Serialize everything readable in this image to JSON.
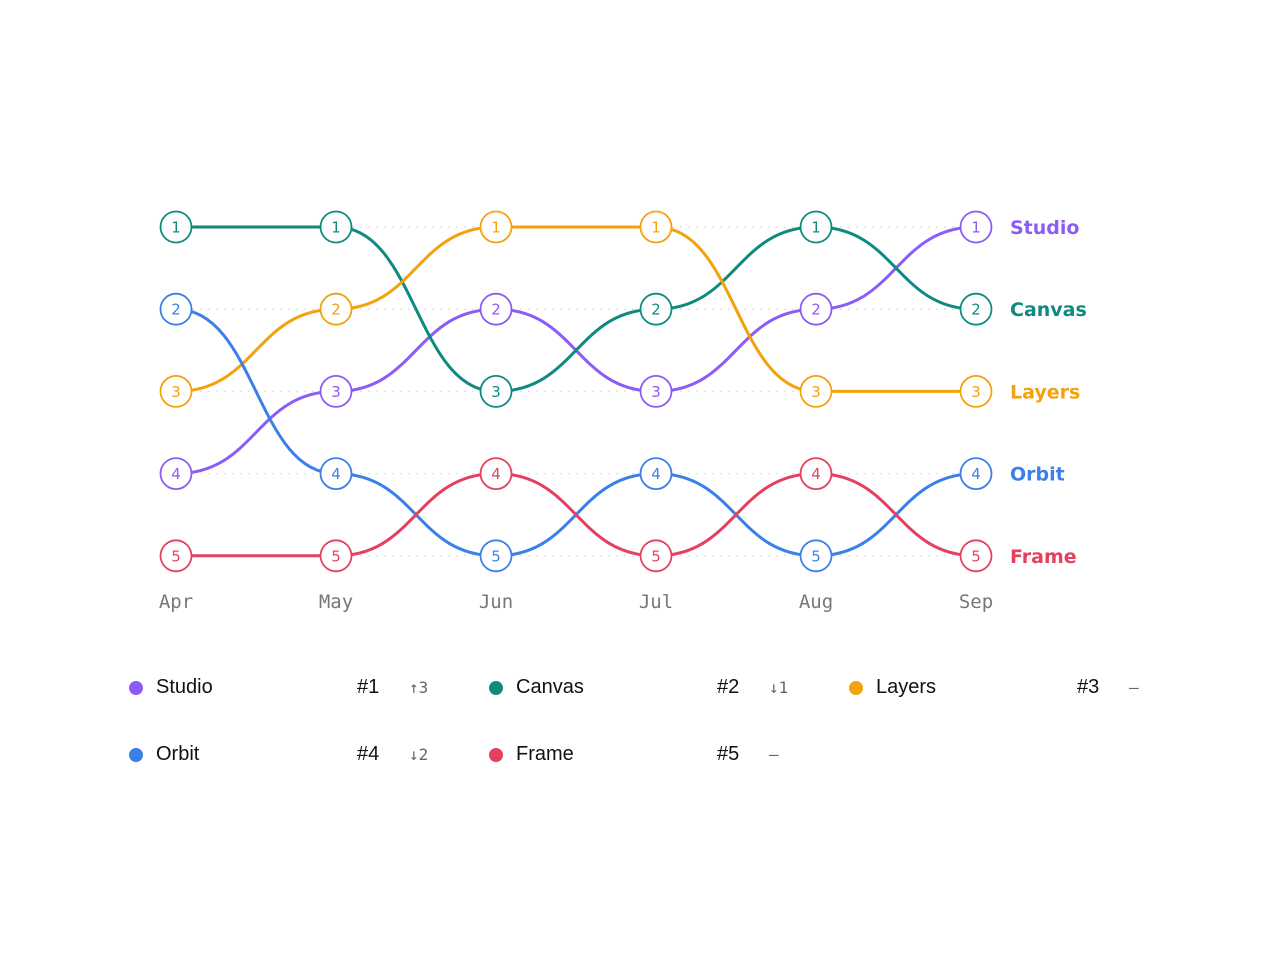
{
  "chart_data": {
    "type": "line",
    "title": "",
    "xlabel": "",
    "ylabel": "",
    "categories": [
      "Apr",
      "May",
      "Jun",
      "Jul",
      "Aug",
      "Sep"
    ],
    "ylim": [
      1,
      5
    ],
    "y_inverted": true,
    "grid": true,
    "legend": "bottom",
    "series": [
      {
        "name": "Studio",
        "color": "#8b5cf6",
        "values": [
          4,
          3,
          2,
          3,
          2,
          1
        ]
      },
      {
        "name": "Canvas",
        "color": "#0f8a80",
        "values": [
          1,
          1,
          3,
          2,
          1,
          2
        ]
      },
      {
        "name": "Layers",
        "color": "#f2a20c",
        "values": [
          3,
          2,
          1,
          1,
          3,
          3
        ]
      },
      {
        "name": "Orbit",
        "color": "#3b7fe8",
        "values": [
          2,
          4,
          5,
          4,
          5,
          4
        ]
      },
      {
        "name": "Frame",
        "color": "#e5405e",
        "values": [
          5,
          5,
          4,
          5,
          4,
          5
        ]
      }
    ]
  },
  "legend": [
    {
      "name": "Studio",
      "color": "#8b5cf6",
      "rank": "#1",
      "change": "↑3"
    },
    {
      "name": "Canvas",
      "color": "#0f8a80",
      "rank": "#2",
      "change": "↓1"
    },
    {
      "name": "Layers",
      "color": "#f2a20c",
      "rank": "#3",
      "change": "–"
    },
    {
      "name": "Orbit",
      "color": "#3b7fe8",
      "rank": "#4",
      "change": "↓2"
    },
    {
      "name": "Frame",
      "color": "#e5405e",
      "rank": "#5",
      "change": "–"
    }
  ]
}
